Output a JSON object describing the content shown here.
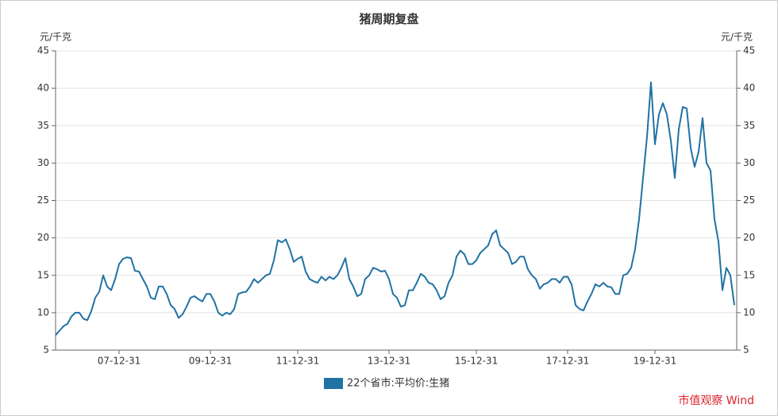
{
  "chart_data": {
    "type": "line",
    "title": "猪周期复盘",
    "y_label": "元/千克",
    "y2_label": "元/千克",
    "annotation": "市值观察 Wind",
    "categories": [
      null,
      null,
      null,
      null,
      null,
      null,
      null,
      null,
      null,
      null,
      null,
      null,
      null,
      null,
      null,
      null,
      "07-12-31",
      null,
      null,
      null,
      null,
      null,
      null,
      null,
      null,
      null,
      null,
      null,
      null,
      null,
      null,
      null,
      null,
      null,
      null,
      null,
      null,
      null,
      null,
      "09-12-31",
      null,
      null,
      null,
      null,
      null,
      null,
      null,
      null,
      null,
      null,
      null,
      null,
      null,
      null,
      null,
      null,
      null,
      null,
      null,
      null,
      null,
      "11-12-31",
      null,
      null,
      null,
      null,
      null,
      null,
      null,
      null,
      null,
      null,
      null,
      null,
      null,
      null,
      null,
      null,
      null,
      null,
      null,
      null,
      null,
      null,
      "13-12-31",
      null,
      null,
      null,
      null,
      null,
      null,
      null,
      null,
      null,
      null,
      null,
      null,
      null,
      null,
      null,
      null,
      null,
      null,
      null,
      null,
      null,
      "15-12-31",
      null,
      null,
      null,
      null,
      null,
      null,
      null,
      null,
      null,
      null,
      null,
      null,
      null,
      null,
      null,
      null,
      null,
      null,
      null,
      null,
      null,
      null,
      "17-12-31",
      null,
      null,
      null,
      null,
      null,
      null,
      null,
      null,
      null,
      null,
      null,
      null,
      null,
      null,
      null,
      null,
      null,
      null,
      null,
      null,
      null,
      "19-12-31",
      null,
      null,
      null,
      null,
      null,
      null,
      null,
      null,
      null,
      null,
      null,
      null,
      null,
      null,
      null,
      null,
      null,
      null,
      null,
      null
    ],
    "series": [
      {
        "name": "22个省市:平均价:生猪",
        "color": "#2172a4",
        "values": [
          7.0,
          7.6,
          8.2,
          8.5,
          9.5,
          10.0,
          10.0,
          9.2,
          9.0,
          10.2,
          12,
          12.8,
          15,
          13.5,
          13,
          14.5,
          16.5,
          17.2,
          17.4,
          17.3,
          15.6,
          15.5,
          14.5,
          13.5,
          12,
          11.8,
          13.5,
          13.5,
          12.5,
          11,
          10.5,
          9.3,
          9.8,
          10.8,
          12,
          12.2,
          11.8,
          11.5,
          12.5,
          12.5,
          11.5,
          10,
          9.6,
          10,
          9.8,
          10.5,
          12.5,
          12.7,
          12.8,
          13.5,
          14.5,
          14,
          14.5,
          15,
          15.2,
          17,
          19.7,
          19.4,
          19.8,
          18.5,
          16.8,
          17.2,
          17.5,
          15.5,
          14.5,
          14.2,
          14,
          14.8,
          14.3,
          14.8,
          14.5,
          15,
          16,
          17.3,
          14.5,
          13.5,
          12.2,
          12.5,
          14.5,
          15,
          16,
          15.8,
          15.5,
          15.6,
          14.5,
          12.5,
          12,
          10.8,
          11,
          13,
          13,
          14,
          15.2,
          14.8,
          14,
          13.8,
          13,
          11.8,
          12.2,
          14,
          15,
          17.5,
          18.3,
          17.8,
          16.5,
          16.5,
          17,
          18,
          18.5,
          19,
          20.5,
          21,
          19,
          18.5,
          18,
          16.5,
          16.8,
          17.5,
          17.5,
          15.8,
          15,
          14.5,
          13.2,
          13.8,
          14,
          14.5,
          14.5,
          14,
          14.8,
          14.8,
          13.8,
          11,
          10.5,
          10.3,
          11.5,
          12.5,
          13.8,
          13.5,
          14,
          13.5,
          13.4,
          12.5,
          12.5,
          15,
          15.2,
          16,
          18.5,
          22.5,
          28,
          33.5,
          40.8,
          32.5,
          36.5,
          38,
          36.5,
          33,
          28,
          34.5,
          37.5,
          37.3,
          32,
          29.5,
          31.5,
          36,
          30,
          29,
          22.5,
          19.5,
          13,
          16,
          15,
          11
        ]
      }
    ],
    "ylim": [
      5,
      45
    ],
    "yticks": [
      5,
      10,
      15,
      20,
      25,
      30,
      35,
      40,
      45
    ],
    "y2lim": [
      5,
      45
    ],
    "y2ticks": [
      5,
      10,
      15,
      20,
      25,
      30,
      35,
      40,
      45
    ],
    "grid": true
  }
}
